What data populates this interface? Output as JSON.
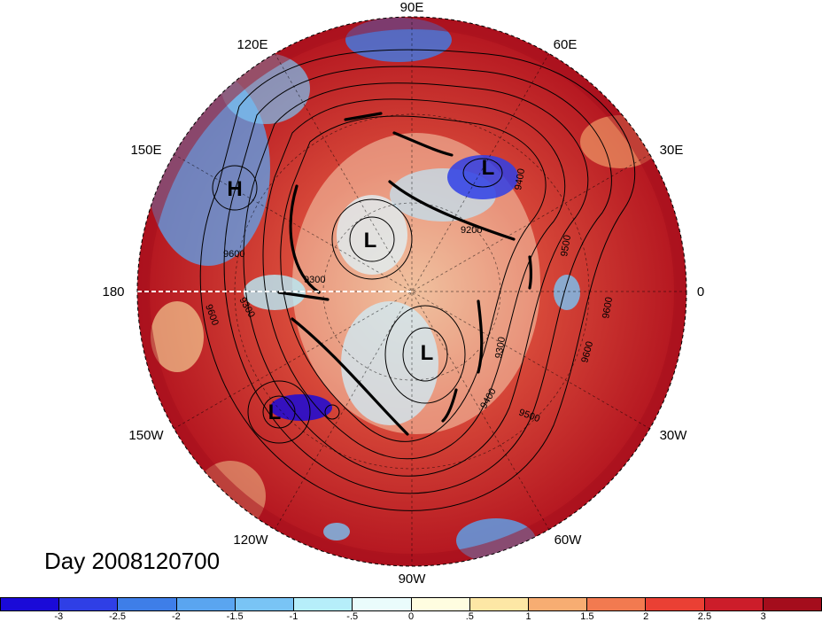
{
  "map": {
    "projection": "polar stereographic",
    "hemisphere": "north",
    "longitude_labels": [
      {
        "id": "90E",
        "text": "90E"
      },
      {
        "id": "60E",
        "text": "60E"
      },
      {
        "id": "30E",
        "text": "30E"
      },
      {
        "id": "0",
        "text": "0"
      },
      {
        "id": "30W",
        "text": "30W"
      },
      {
        "id": "60W",
        "text": "60W"
      },
      {
        "id": "90W",
        "text": "90W"
      },
      {
        "id": "120W",
        "text": "120W"
      },
      {
        "id": "150W",
        "text": "150W"
      },
      {
        "id": "180",
        "text": "180"
      },
      {
        "id": "150E",
        "text": "150E"
      },
      {
        "id": "120E",
        "text": "120E"
      }
    ],
    "pressure_centers": [
      {
        "text": "H"
      },
      {
        "text": "L"
      },
      {
        "text": "L"
      },
      {
        "text": "L"
      },
      {
        "text": "L"
      }
    ],
    "contour_labels": [
      "9600",
      "9300",
      "9600",
      "9300",
      "9400",
      "9200",
      "9500",
      "9600",
      "9300",
      "9400",
      "9500",
      "9600"
    ]
  },
  "title": "Day 2008120700",
  "colorbar": {
    "colors": [
      "#1a0ad8",
      "#2f3fe6",
      "#3e7ee8",
      "#5aa5f0",
      "#79c4f5",
      "#b6eefa",
      "#eafcfc",
      "#fffde0",
      "#fde7a5",
      "#f7ad72",
      "#f27a50",
      "#ea4034",
      "#cc1d2a",
      "#a40d1c"
    ],
    "tick_labels": [
      "-3",
      "-2.5",
      "-2",
      "-1.5",
      "-1",
      "-.5",
      "0",
      ".5",
      "1",
      "1.5",
      "2",
      "2.5",
      "3"
    ]
  }
}
